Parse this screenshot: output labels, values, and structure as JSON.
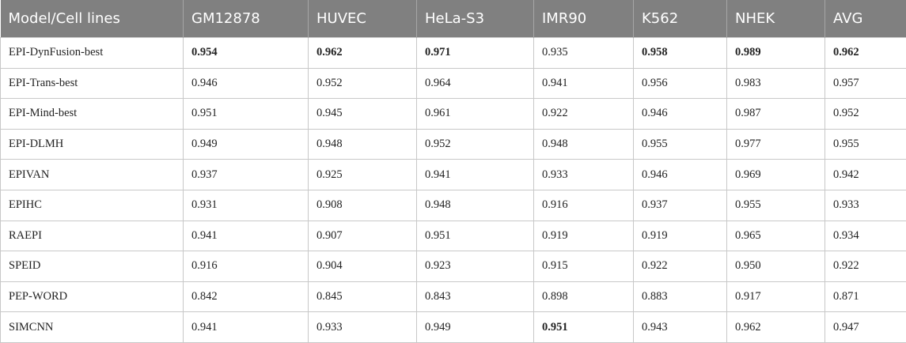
{
  "table": {
    "header": [
      "Model/Cell lines",
      "GM12878",
      "HUVEC",
      "HeLa-S3",
      "IMR90",
      "K562",
      "NHEK",
      "AVG"
    ],
    "rows": [
      [
        "EPI-DynFusion-best",
        "0.954",
        "0.962",
        "0.971",
        "0.935",
        "0.958",
        "0.989",
        "0.962"
      ],
      [
        "EPI-Trans-best",
        "0.946",
        "0.952",
        "0.964",
        "0.941",
        "0.956",
        "0.983",
        "0.957"
      ],
      [
        "EPI-Mind-best",
        "0.951",
        "0.945",
        "0.961",
        "0.922",
        "0.946",
        "0.987",
        "0.952"
      ],
      [
        "EPI-DLMH",
        "0.949",
        "0.948",
        "0.952",
        "0.948",
        "0.955",
        "0.977",
        "0.955"
      ],
      [
        "EPIVAN",
        "0.937",
        "0.925",
        "0.941",
        "0.933",
        "0.946",
        "0.969",
        "0.942"
      ],
      [
        "EPIHC",
        "0.931",
        "0.908",
        "0.948",
        "0.916",
        "0.937",
        "0.955",
        "0.933"
      ],
      [
        "RAEPI",
        "0.941",
        "0.907",
        "0.951",
        "0.919",
        "0.919",
        "0.965",
        "0.934"
      ],
      [
        "SPEID",
        "0.916",
        "0.904",
        "0.923",
        "0.915",
        "0.922",
        "0.950",
        "0.922"
      ],
      [
        "PEP-WORD",
        "0.842",
        "0.845",
        "0.843",
        "0.898",
        "0.883",
        "0.917",
        "0.871"
      ],
      [
        "SIMCNN",
        "0.941",
        "0.933",
        "0.949",
        "0.951",
        "0.943",
        "0.962",
        "0.947"
      ]
    ],
    "bold": [
      [
        0,
        1
      ],
      [
        0,
        2
      ],
      [
        0,
        3
      ],
      [
        0,
        5
      ],
      [
        0,
        6
      ],
      [
        0,
        7
      ],
      [
        9,
        4
      ]
    ]
  }
}
